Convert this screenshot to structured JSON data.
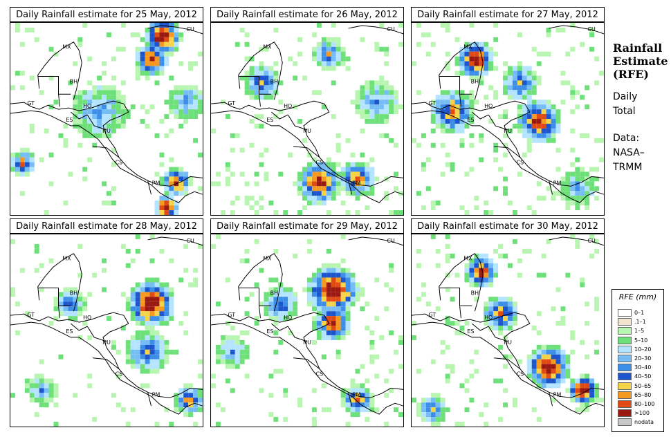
{
  "panels": [
    {
      "title": "Daily Rainfall estimate for  25 May, 2012"
    },
    {
      "title": "Daily Rainfall estimate for  26 May, 2012"
    },
    {
      "title": "Daily Rainfall estimate for  27 May, 2012"
    },
    {
      "title": "Daily Rainfall estimate for  28 May, 2012"
    },
    {
      "title": "Daily Rainfall estimate for  29 May, 2012"
    },
    {
      "title": "Daily Rainfall estimate for  30 May, 2012"
    }
  ],
  "country_labels": [
    "MX",
    "BH",
    "GT",
    "HO",
    "ES",
    "NU",
    "CS",
    "PM",
    "CU"
  ],
  "sidebar": {
    "title_line1": "Rainfall",
    "title_line2": "Estimate",
    "title_line3": "(RFE)",
    "period_line1": "Daily",
    "period_line2": "Total",
    "source_line1": "Data:",
    "source_line2": "NASA–",
    "source_line3": "TRMM"
  },
  "legend": {
    "title": "RFE (mm)",
    "items": [
      {
        "label": "0–1",
        "color": "#ffffff"
      },
      {
        "label": ".1–1",
        "color": "#f2e3cc"
      },
      {
        "label": "1–5",
        "color": "#b8f5b0"
      },
      {
        "label": "5–10",
        "color": "#6ee07a"
      },
      {
        "label": "10–20",
        "color": "#b4e4ff"
      },
      {
        "label": "20–30",
        "color": "#76bdf5"
      },
      {
        "label": "30–40",
        "color": "#3c8ee8"
      },
      {
        "label": "40–50",
        "color": "#1c55cc"
      },
      {
        "label": "50–65",
        "color": "#f5d44a"
      },
      {
        "label": "65–80",
        "color": "#f59a1e"
      },
      {
        "label": "80–100",
        "color": "#e24a14"
      },
      {
        "label": ">100",
        "color": "#9a1a12"
      },
      {
        "label": "nodata",
        "color": "#c8c8c8"
      }
    ]
  },
  "rain_patterns": [
    {
      "scatter": 0.3,
      "blobs": [
        [
          0.78,
          0.06,
          0.1,
          4
        ],
        [
          0.72,
          0.18,
          0.09,
          3
        ],
        [
          0.85,
          0.82,
          0.08,
          3
        ],
        [
          0.8,
          0.95,
          0.07,
          4
        ],
        [
          0.05,
          0.72,
          0.07,
          2
        ],
        [
          0.45,
          0.45,
          0.15,
          0
        ],
        [
          0.9,
          0.4,
          0.1,
          0
        ]
      ]
    },
    {
      "scatter": 0.4,
      "blobs": [
        [
          0.55,
          0.82,
          0.12,
          3
        ],
        [
          0.75,
          0.8,
          0.1,
          2
        ],
        [
          0.25,
          0.3,
          0.1,
          1
        ],
        [
          0.6,
          0.15,
          0.08,
          1
        ],
        [
          0.85,
          0.4,
          0.12,
          0
        ]
      ]
    },
    {
      "scatter": 0.45,
      "blobs": [
        [
          0.32,
          0.18,
          0.1,
          4
        ],
        [
          0.65,
          0.5,
          0.12,
          3
        ],
        [
          0.2,
          0.45,
          0.12,
          2
        ],
        [
          0.55,
          0.3,
          0.1,
          1
        ],
        [
          0.85,
          0.85,
          0.1,
          0
        ]
      ]
    },
    {
      "scatter": 0.22,
      "blobs": [
        [
          0.72,
          0.35,
          0.13,
          4
        ],
        [
          0.7,
          0.6,
          0.12,
          1
        ],
        [
          0.92,
          0.85,
          0.08,
          2
        ],
        [
          0.3,
          0.35,
          0.08,
          1
        ],
        [
          0.15,
          0.8,
          0.08,
          0
        ]
      ]
    },
    {
      "scatter": 0.32,
      "blobs": [
        [
          0.62,
          0.28,
          0.14,
          4
        ],
        [
          0.62,
          0.45,
          0.1,
          3
        ],
        [
          0.35,
          0.35,
          0.1,
          1
        ],
        [
          0.75,
          0.85,
          0.08,
          2
        ],
        [
          0.1,
          0.6,
          0.08,
          0
        ]
      ]
    },
    {
      "scatter": 0.35,
      "blobs": [
        [
          0.7,
          0.68,
          0.12,
          4
        ],
        [
          0.88,
          0.8,
          0.08,
          4
        ],
        [
          0.35,
          0.18,
          0.09,
          3
        ],
        [
          0.45,
          0.4,
          0.1,
          2
        ],
        [
          0.1,
          0.9,
          0.08,
          1
        ]
      ]
    }
  ]
}
